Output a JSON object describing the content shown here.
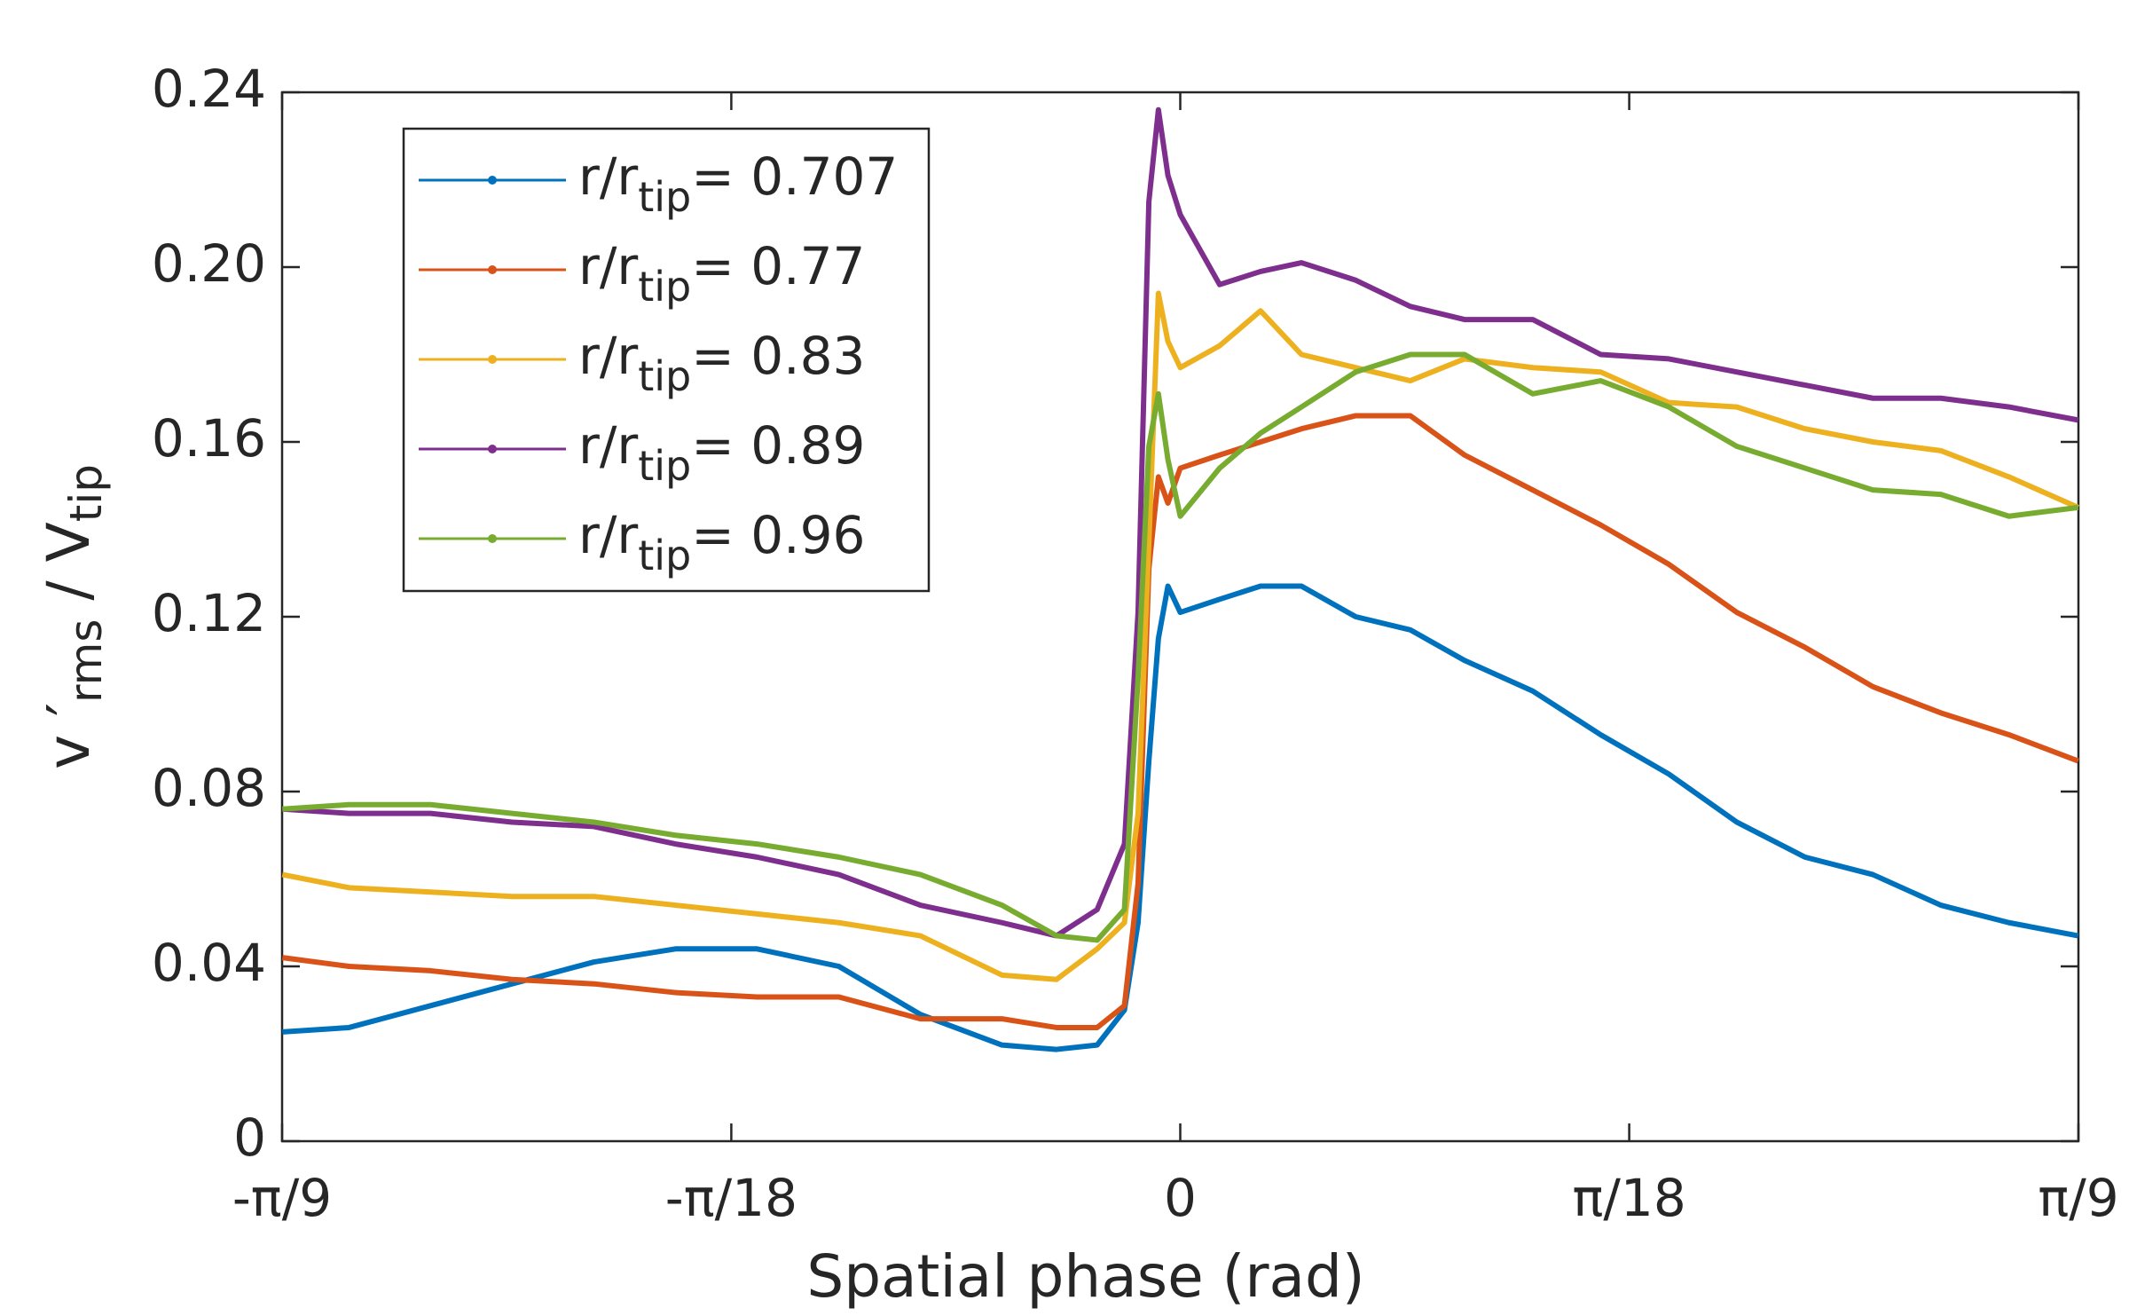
{
  "chart_data": {
    "type": "line",
    "xlabel": "Spatial phase (rad)",
    "ylabel": [
      "v ′",
      "rms",
      " / V",
      "tip"
    ],
    "x": [
      -0.349,
      -0.3231,
      -0.2914,
      -0.2597,
      -0.2279,
      -0.1962,
      -0.1645,
      -0.1327,
      -0.101,
      -0.0693,
      -0.0481,
      -0.0323,
      -0.0217,
      -0.0164,
      -0.0122,
      -0.0085,
      -0.0048,
      0,
      0.0153,
      0.0312,
      0.0471,
      0.0682,
      0.0894,
      0.1105,
      0.137,
      0.1634,
      0.1899,
      0.2163,
      0.2428,
      0.2692,
      0.2956,
      0.3221,
      0.349
    ],
    "series": [
      {
        "name": [
          "r/r",
          "tip",
          "= 0.707"
        ],
        "color": "#0072bd",
        "values": [
          0.025,
          0.026,
          0.031,
          0.036,
          0.041,
          0.044,
          0.044,
          0.04,
          0.029,
          0.022,
          0.021,
          0.022,
          0.03,
          0.05,
          0.087,
          0.115,
          0.127,
          0.121,
          0.124,
          0.127,
          0.127,
          0.12,
          0.117,
          0.11,
          0.103,
          0.093,
          0.084,
          0.073,
          0.065,
          0.061,
          0.054,
          0.05,
          0.047
        ]
      },
      {
        "name": [
          "r/r",
          "tip",
          "= 0.77"
        ],
        "color": "#d95319",
        "values": [
          0.042,
          0.04,
          0.039,
          0.037,
          0.036,
          0.034,
          0.033,
          0.033,
          0.028,
          0.028,
          0.026,
          0.026,
          0.031,
          0.059,
          0.131,
          0.152,
          0.146,
          0.154,
          0.157,
          0.16,
          0.163,
          0.166,
          0.166,
          0.157,
          0.149,
          0.141,
          0.132,
          0.121,
          0.113,
          0.104,
          0.098,
          0.093,
          0.087
        ]
      },
      {
        "name": [
          "r/r",
          "tip",
          "= 0.83"
        ],
        "color": "#edb120",
        "values": [
          0.061,
          0.058,
          0.057,
          0.056,
          0.056,
          0.054,
          0.052,
          0.05,
          0.047,
          0.038,
          0.037,
          0.044,
          0.05,
          0.075,
          0.137,
          0.194,
          0.183,
          0.177,
          0.182,
          0.19,
          0.18,
          0.177,
          0.174,
          0.179,
          0.177,
          0.176,
          0.169,
          0.168,
          0.163,
          0.16,
          0.158,
          0.152,
          0.145
        ]
      },
      {
        "name": [
          "r/r",
          "tip",
          "= 0.89"
        ],
        "color": "#7e2f8e",
        "values": [
          0.076,
          0.075,
          0.075,
          0.073,
          0.072,
          0.068,
          0.065,
          0.061,
          0.054,
          0.05,
          0.047,
          0.053,
          0.068,
          0.121,
          0.215,
          0.236,
          0.221,
          0.212,
          0.196,
          0.199,
          0.201,
          0.197,
          0.191,
          0.188,
          0.188,
          0.18,
          0.179,
          0.176,
          0.173,
          0.17,
          0.17,
          0.168,
          0.165
        ]
      },
      {
        "name": [
          "r/r",
          "tip",
          "= 0.96"
        ],
        "color": "#77ac30",
        "values": [
          0.076,
          0.077,
          0.077,
          0.075,
          0.073,
          0.07,
          0.068,
          0.065,
          0.061,
          0.054,
          0.047,
          0.046,
          0.053,
          0.106,
          0.159,
          0.171,
          0.156,
          0.143,
          0.154,
          0.162,
          0.168,
          0.176,
          0.18,
          0.18,
          0.171,
          0.174,
          0.168,
          0.159,
          0.154,
          0.149,
          0.148,
          0.143,
          0.145
        ]
      }
    ],
    "xlim": [
      -0.3491,
      0.3491
    ],
    "xticks": [
      {
        "value": -0.3491,
        "label": "-π/9"
      },
      {
        "value": -0.1745,
        "label": "-π/18"
      },
      0,
      {
        "value": 0.1745,
        "label": "π/18"
      },
      {
        "value": 0.3491,
        "label": "π/9"
      }
    ],
    "ylim": [
      0,
      0.24
    ],
    "yticks": [
      0,
      0.04,
      0.08,
      0.12,
      0.16,
      {
        "value": 0.2,
        "label": "0.20"
      },
      0.24
    ],
    "grid": false,
    "legend": "upper left"
  }
}
